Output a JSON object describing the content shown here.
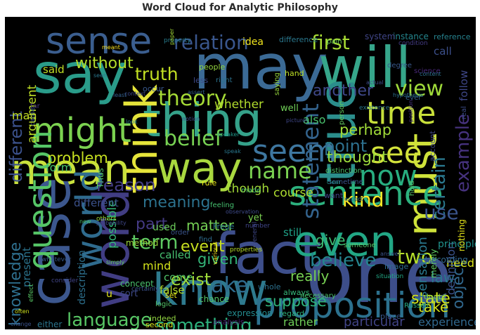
{
  "title": "Word Cloud for Analytic Philosophy",
  "background": "#000000",
  "colormap": "viridis",
  "words": [
    {
      "text": "say",
      "color": "#2a9c8a"
    },
    {
      "text": "may",
      "color": "#3b6a95"
    },
    {
      "text": "will",
      "color": "#36a68a"
    },
    {
      "text": "sense",
      "color": "#3b5e8f"
    },
    {
      "text": "thing",
      "color": "#35a28a"
    },
    {
      "text": "think",
      "color": "#e5e43a"
    },
    {
      "text": "mean",
      "color": "#c9e13d"
    },
    {
      "text": "true",
      "color": "#2b8e8c"
    },
    {
      "text": "must",
      "color": "#cfe23a"
    },
    {
      "text": "way",
      "color": "#a9d83f"
    },
    {
      "text": "time",
      "color": "#c8e03a"
    },
    {
      "text": "might",
      "color": "#7cd250"
    },
    {
      "text": "case",
      "color": "#3c578e"
    },
    {
      "text": "word",
      "color": "#413d83"
    },
    {
      "text": "fact",
      "color": "#3e4f8b"
    },
    {
      "text": "one",
      "color": "#3d4e8a"
    },
    {
      "text": "know",
      "color": "#2e7a8e"
    },
    {
      "text": "even",
      "color": "#22a785"
    },
    {
      "text": "proposition",
      "color": "#2c718e"
    },
    {
      "text": "sentence",
      "color": "#2cb17e"
    },
    {
      "text": "question",
      "color": "#56c667"
    },
    {
      "text": "world",
      "color": "#2f6b8e"
    },
    {
      "text": "seem",
      "color": "#3e77a0"
    },
    {
      "text": "see",
      "color": "#d3e33b"
    },
    {
      "text": "now",
      "color": "#28ae80"
    },
    {
      "text": "theory",
      "color": "#a5db36"
    },
    {
      "text": "belief",
      "color": "#77d153"
    },
    {
      "text": "statement",
      "color": "#33638d"
    },
    {
      "text": "relation",
      "color": "#39568c"
    },
    {
      "text": "first",
      "color": "#a8db34"
    },
    {
      "text": "view",
      "color": "#9fda3a"
    },
    {
      "text": "example",
      "color": "#46327e"
    },
    {
      "text": "another",
      "color": "#3f4889"
    },
    {
      "text": "truth",
      "color": "#c2df23"
    },
    {
      "text": "without",
      "color": "#b3dd2b"
    },
    {
      "text": "argument",
      "color": "#bddf26"
    },
    {
      "text": "problem",
      "color": "#c7e020"
    },
    {
      "text": "different",
      "color": "#3b518b"
    },
    {
      "text": "name",
      "color": "#7ad151"
    },
    {
      "text": "reason",
      "color": "#433d84"
    },
    {
      "text": "meaning",
      "color": "#2c728e"
    },
    {
      "text": "kind",
      "color": "#fde725"
    },
    {
      "text": "certain",
      "color": "#2a788e"
    },
    {
      "text": "point",
      "color": "#2d708e"
    },
    {
      "text": "perhap",
      "color": "#a0da39"
    },
    {
      "text": "thought",
      "color": "#9bd93c"
    },
    {
      "text": "use",
      "color": "#3a548c"
    },
    {
      "text": "two",
      "color": "#b5de2b"
    },
    {
      "text": "object",
      "color": "#31688e"
    },
    {
      "text": "knowledge",
      "color": "#2e6f8e"
    },
    {
      "text": "language",
      "color": "#58c765"
    },
    {
      "text": "term",
      "color": "#5ec962"
    },
    {
      "text": "something",
      "color": "#2db27d"
    },
    {
      "text": "make",
      "color": "#2f6c8e"
    },
    {
      "text": "believe",
      "color": "#25848e"
    },
    {
      "text": "exist",
      "color": "#9fda3a"
    },
    {
      "text": "event",
      "color": "#c8e020"
    },
    {
      "text": "part",
      "color": "#443a83"
    },
    {
      "text": "matter",
      "color": "#75d054"
    },
    {
      "text": "give",
      "color": "#3dbc74"
    },
    {
      "text": "given",
      "color": "#34b679"
    },
    {
      "text": "really",
      "color": "#77d153"
    },
    {
      "text": "suppose",
      "color": "#2fb47c"
    },
    {
      "text": "particular",
      "color": "#414487"
    },
    {
      "text": "experience",
      "color": "#31688e"
    },
    {
      "text": "law",
      "color": "#2a788e"
    },
    {
      "text": "state",
      "color": "#d2e21b"
    },
    {
      "text": "take",
      "color": "#d5e21a"
    },
    {
      "text": "rather",
      "color": "#6ece58"
    },
    {
      "text": "course",
      "color": "#addc30"
    },
    {
      "text": "though",
      "color": "#a2da37"
    },
    {
      "text": "whether",
      "color": "#b2dd2d"
    },
    {
      "text": "mind",
      "color": "#d2e21b"
    },
    {
      "text": "possible",
      "color": "#35b779"
    },
    {
      "text": "sensation",
      "color": "#2a788e"
    },
    {
      "text": "need",
      "color": "#d8e219"
    },
    {
      "text": "description",
      "color": "#2d708e"
    },
    {
      "text": "present",
      "color": "#2b748e"
    },
    {
      "text": "definition",
      "color": "#3b528b"
    },
    {
      "text": "said",
      "color": "#c0df25"
    },
    {
      "text": "man",
      "color": "#c2df23"
    },
    {
      "text": "form",
      "color": "#48c16e"
    },
    {
      "text": "different",
      "color": "#3b518b"
    },
    {
      "text": "Thus",
      "color": "#56c667"
    },
    {
      "text": "used",
      "color": "#6ccd5a"
    },
    {
      "text": "called",
      "color": "#46c06f"
    },
    {
      "text": "come",
      "color": "#51c56a"
    },
    {
      "text": "sort",
      "color": "#3e4989"
    },
    {
      "text": "idea",
      "color": "#f1e51d"
    },
    {
      "text": "well",
      "color": "#70cf57"
    },
    {
      "text": "also",
      "color": "#4ac16d"
    },
    {
      "text": "instance",
      "color": "#24868e"
    },
    {
      "text": "reference",
      "color": "#26828e"
    },
    {
      "text": "system",
      "color": "#404688"
    },
    {
      "text": "call",
      "color": "#3c508b"
    },
    {
      "text": "follow",
      "color": "#3f4788"
    },
    {
      "text": "principle",
      "color": "#20928c"
    },
    {
      "text": "still",
      "color": "#1fa187"
    },
    {
      "text": "yet",
      "color": "#7ad151"
    },
    {
      "text": "false",
      "color": "#b5de2b"
    },
    {
      "text": "u",
      "color": "#e2e418"
    },
    {
      "text": "nothing",
      "color": "#e5e419"
    },
    {
      "text": "merely",
      "color": "#5ec962"
    },
    {
      "text": "according",
      "color": "#31688e"
    },
    {
      "text": "method",
      "color": "#9bd93c"
    },
    {
      "text": "chance",
      "color": "#54c568"
    },
    {
      "text": "difference",
      "color": "#2a788e"
    },
    {
      "text": "hand",
      "color": "#bddf26"
    },
    {
      "text": "less",
      "color": "#3e4a89"
    },
    {
      "text": "people",
      "color": "#93d741"
    },
    {
      "text": "right",
      "color": "#2c728e"
    },
    {
      "text": "rule",
      "color": "#e7e419"
    },
    {
      "text": "made",
      "color": "#44bf70"
    },
    {
      "text": "Frege",
      "color": "#2a768e"
    },
    {
      "text": "image",
      "color": "#2f6c8e"
    },
    {
      "text": "place",
      "color": "#38588c"
    },
    {
      "text": "doubt",
      "color": "#7fd34e"
    },
    {
      "text": "Russell",
      "color": "#25ab82"
    },
    {
      "text": "expression",
      "color": "#238a8d"
    },
    {
      "text": "always",
      "color": "#35b779"
    },
    {
      "text": "second",
      "color": "#d8e219"
    },
    {
      "text": "analysis",
      "color": "#482475"
    },
    {
      "text": "either",
      "color": "#2b758e"
    },
    {
      "text": "whole",
      "color": "#2d718e"
    },
    {
      "text": "regard",
      "color": "#2db27d"
    },
    {
      "text": "set",
      "color": "#e5e419"
    },
    {
      "text": "order",
      "color": "#3a548c"
    },
    {
      "text": "indeed",
      "color": "#93d741"
    },
    {
      "text": "logic",
      "color": "#54c568"
    },
    {
      "text": "concept",
      "color": "#4ac16d"
    },
    {
      "text": "account",
      "color": "#3f4788"
    },
    {
      "text": "hold",
      "color": "#56c667"
    },
    {
      "text": "real",
      "color": "#3d4d8a"
    },
    {
      "text": "ever",
      "color": "#32658e"
    },
    {
      "text": "occur",
      "color": "#38588c"
    },
    {
      "text": "degree",
      "color": "#38588c"
    },
    {
      "text": "science",
      "color": "#482878"
    },
    {
      "text": "condition",
      "color": "#443b84"
    },
    {
      "text": "person",
      "color": "#63cb5f"
    },
    {
      "text": "saying",
      "color": "#98d83e"
    },
    {
      "text": "pain",
      "color": "#6ccd5a"
    },
    {
      "text": "seen",
      "color": "#2a788e"
    },
    {
      "text": "far",
      "color": "#46337f"
    },
    {
      "text": "existence",
      "color": "#2a778e"
    },
    {
      "text": "distinction",
      "color": "#4ec36b"
    },
    {
      "text": "sometime",
      "color": "#3a548c"
    },
    {
      "text": "want",
      "color": "#414487"
    },
    {
      "text": "feeling",
      "color": "#46c06f"
    },
    {
      "text": "number",
      "color": "#404688"
    },
    {
      "text": "find",
      "color": "#2f6c8e"
    },
    {
      "text": "someone",
      "color": "#56c667"
    },
    {
      "text": "answer",
      "color": "#3b528b"
    },
    {
      "text": "necessary",
      "color": "#4ac16d"
    },
    {
      "text": "situation",
      "color": "#22a785"
    },
    {
      "text": "general",
      "color": "#3f4889"
    },
    {
      "text": "properties",
      "color": "#b8de29"
    },
    {
      "text": "various",
      "color": "#f1e51d"
    },
    {
      "text": "certainly",
      "color": "#3b528b"
    },
    {
      "text": "consider",
      "color": "#414487"
    },
    {
      "text": "simply",
      "color": "#63cb5f"
    },
    {
      "text": "effect",
      "color": "#58c765"
    },
    {
      "text": "often",
      "color": "#cde11d"
    },
    {
      "text": "change",
      "color": "#3b528b"
    },
    {
      "text": "new",
      "color": "#48c16e"
    },
    {
      "text": "others",
      "color": "#9bd93c"
    },
    {
      "text": "probability",
      "color": "#3f4788"
    },
    {
      "text": "whatever",
      "color": "#38598c"
    },
    {
      "text": "context",
      "color": "#3e4989"
    },
    {
      "text": "least",
      "color": "#34608d"
    },
    {
      "text": "property",
      "color": "#287c8e"
    },
    {
      "text": "paper",
      "color": "#a5db36"
    },
    {
      "text": "meant",
      "color": "#fde725"
    },
    {
      "text": "cause",
      "color": "#3a548c"
    },
    {
      "text": "look",
      "color": "#26828e"
    },
    {
      "text": "speaker",
      "color": "#1f998a"
    },
    {
      "text": "notion",
      "color": "#3d4e8a"
    },
    {
      "text": "observation",
      "color": "#3e4a89"
    },
    {
      "text": "speak",
      "color": "#2a788e"
    },
    {
      "text": "position",
      "color": "#46337f"
    },
    {
      "text": "hypothesis",
      "color": "#2c728e"
    },
    {
      "text": "actual",
      "color": "#3e4c8a"
    },
    {
      "text": "content",
      "color": "#2d718e"
    },
    {
      "text": "picture",
      "color": "#3f4788"
    },
    {
      "text": "assert",
      "color": "#33638d"
    },
    {
      "text": "respect",
      "color": "#2a788e"
    },
    {
      "text": "clear",
      "color": "#21918c"
    },
    {
      "text": "much",
      "color": "#35b779"
    },
    {
      "text": "anything",
      "color": "#482878"
    },
    {
      "text": "Let",
      "color": "#2b758e"
    },
    {
      "text": "true",
      "color": "#3b528b"
    }
  ]
}
